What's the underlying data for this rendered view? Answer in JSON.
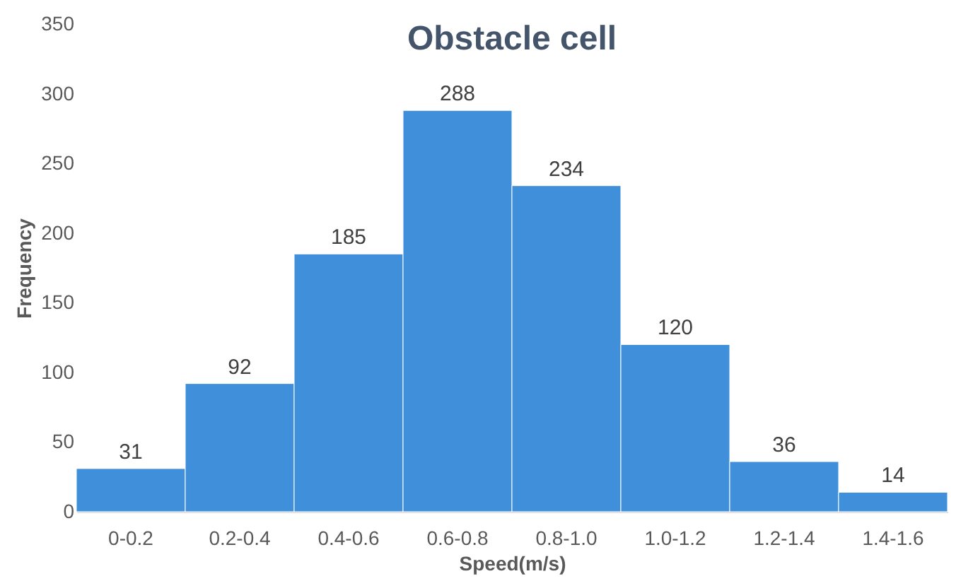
{
  "chart_data": {
    "type": "bar",
    "title": "Obstacle cell",
    "xlabel": "Speed(m/s)",
    "ylabel": "Frequency",
    "categories": [
      "0-0.2",
      "0.2-0.4",
      "0.4-0.6",
      "0.6-0.8",
      "0.8-1.0",
      "1.0-1.2",
      "1.2-1.4",
      "1.4-1.6"
    ],
    "values": [
      31,
      92,
      185,
      288,
      234,
      120,
      36,
      14
    ],
    "color": "#3f8fdb",
    "ylim": [
      0,
      350
    ],
    "yticks": [
      0,
      50,
      100,
      150,
      200,
      250,
      300,
      350
    ],
    "grid": false,
    "data_labels": true
  }
}
